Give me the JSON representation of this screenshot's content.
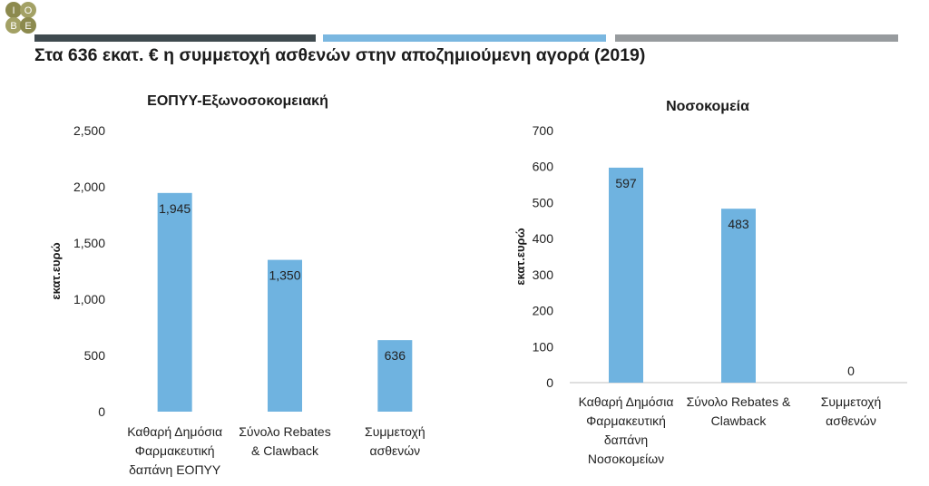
{
  "header": {
    "logo_text": "IOBE",
    "title": "Στα 636 εκατ. € η συμμετοχή ασθενών στην αποζημιούμενη αγορά (2019)",
    "bar_colors": [
      "#3f4a4f",
      "#7ab7e0",
      "#979b9e"
    ]
  },
  "chart_data": [
    {
      "type": "bar",
      "title": "ΕΟΠΥΥ-Εξωνοσοκομειακή",
      "ylabel": "εκατ.ευρώ",
      "xlabel": "",
      "ylim": [
        0,
        2500
      ],
      "yticks": [
        0,
        500,
        1000,
        1500,
        2000,
        2500
      ],
      "ytick_labels": [
        "0",
        "500",
        "1,000",
        "1,500",
        "2,000",
        "2,500"
      ],
      "categories": [
        [
          "Καθαρή Δημόσια",
          "Φαρμακευτική",
          "δαπάνη ΕΟΠΥΥ"
        ],
        [
          "Σύνολο Rebates",
          "& Clawback"
        ],
        [
          "Συμμετοχή",
          "ασθενών"
        ]
      ],
      "values": [
        1945,
        1350,
        636
      ],
      "value_labels": [
        "1,945",
        "1,350",
        "636"
      ],
      "grid": false,
      "legend": "none",
      "bar_color": "#6fb3e0"
    },
    {
      "type": "bar",
      "title": "Νοσοκομεία",
      "ylabel": "εκατ.ευρώ",
      "xlabel": "",
      "ylim": [
        0,
        700
      ],
      "yticks": [
        0,
        100,
        200,
        300,
        400,
        500,
        600,
        700
      ],
      "ytick_labels": [
        "0",
        "100",
        "200",
        "300",
        "400",
        "500",
        "600",
        "700"
      ],
      "categories": [
        [
          "Καθαρή Δημόσια",
          "Φαρμακευτική",
          "δαπάνη",
          "Νοσοκομείων"
        ],
        [
          "Σύνολο Rebates &",
          "Clawback"
        ],
        [
          "Συμμετοχή",
          "ασθενών"
        ]
      ],
      "values": [
        597,
        483,
        0
      ],
      "value_labels": [
        "597",
        "483",
        "0"
      ],
      "grid": false,
      "legend": "none",
      "bar_color": "#6fb3e0"
    }
  ]
}
